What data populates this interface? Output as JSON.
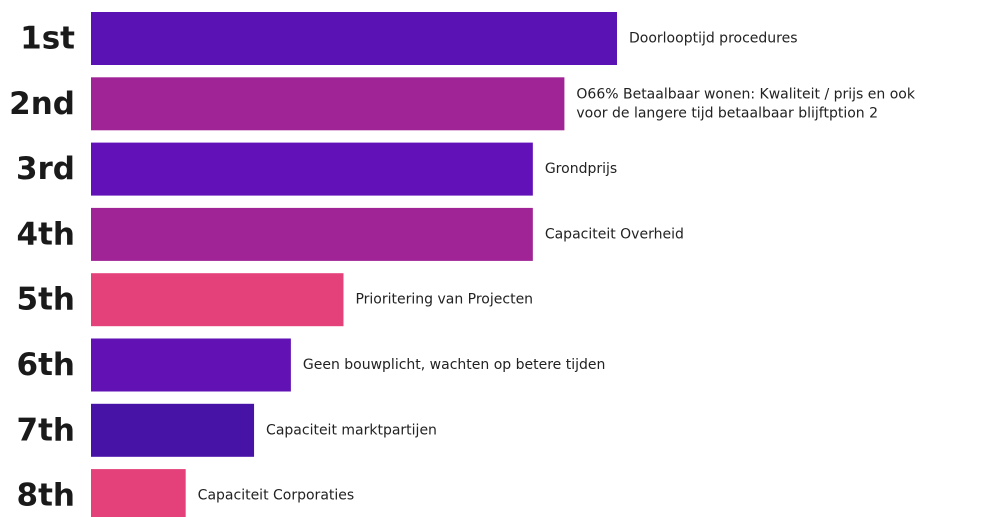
{
  "chart_data": {
    "type": "bar",
    "orientation": "horizontal",
    "title": "",
    "xlabel": "",
    "ylabel": "",
    "categories": [
      "1st",
      "2nd",
      "3rd",
      "4th",
      "5th",
      "6th",
      "7th",
      "8th"
    ],
    "labels": [
      [
        "Doorlooptijd procedures"
      ],
      [
        "O66% Betaalbaar wonen: Kwaliteit / prijs en ook",
        "voor de langere tijd betaalbaar blijftption 2"
      ],
      [
        "Grondprijs"
      ],
      [
        "Capaciteit Overheid"
      ],
      [
        "Prioritering van Projecten"
      ],
      [
        "Geen bouwplicht, wachten op betere tijden"
      ],
      [
        "Capaciteit marktpartijen"
      ],
      [
        "Capaciteit Corporaties"
      ]
    ],
    "values": [
      100,
      90,
      84,
      84,
      48,
      38,
      31,
      18
    ],
    "xlim": [
      0,
      100
    ],
    "colors": [
      "#5a12b4",
      "#a02496",
      "#6211b8",
      "#a02496",
      "#e4407a",
      "#6212b4",
      "#4712a6",
      "#e4407a"
    ],
    "grid": false,
    "legend": "none"
  }
}
